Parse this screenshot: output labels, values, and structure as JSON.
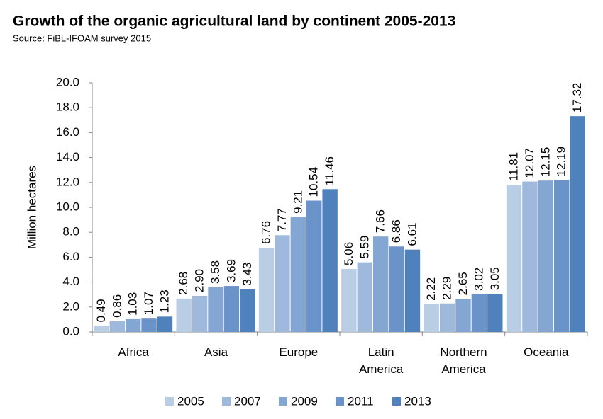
{
  "chart_data": {
    "type": "bar",
    "title": "Growth of the organic agricultural land by continent 2005-2013",
    "subtitle": "Source: FiBL-IFOAM survey 2015",
    "y_label": "Million hectares",
    "categories": [
      "Africa",
      "Asia",
      "Europe",
      "Latin America",
      "Northern America",
      "Oceania"
    ],
    "series": [
      {
        "name": "2005",
        "color": "#b9cde5",
        "values": [
          0.49,
          2.68,
          6.76,
          5.06,
          2.22,
          11.81
        ],
        "value_labels": [
          "0.49",
          "2.68",
          "6.76",
          "5.06",
          "2.22",
          "11.81"
        ]
      },
      {
        "name": "2007",
        "color": "#9fb9dc",
        "values": [
          0.86,
          2.9,
          7.77,
          5.59,
          2.29,
          12.07
        ],
        "value_labels": [
          "0.86",
          "2.90",
          "7.77",
          "5.59",
          "2.29",
          "12.07"
        ]
      },
      {
        "name": "2009",
        "color": "#84a6d3",
        "values": [
          1.03,
          3.58,
          9.21,
          7.66,
          2.65,
          12.15
        ],
        "value_labels": [
          "1.03",
          "3.58",
          "9.21",
          "7.66",
          "2.65",
          "12.15"
        ]
      },
      {
        "name": "2011",
        "color": "#6a93ca",
        "values": [
          1.07,
          3.69,
          10.54,
          6.86,
          3.02,
          12.19
        ],
        "value_labels": [
          "1.07",
          "3.69",
          "10.54",
          "6.86",
          "3.02",
          "12.19"
        ]
      },
      {
        "name": "2013",
        "color": "#4f81bd",
        "values": [
          1.23,
          3.43,
          11.46,
          6.61,
          3.05,
          17.32
        ],
        "value_labels": [
          "1.23",
          "3.43",
          "11.46",
          "6.61",
          "3.05",
          "17.32"
        ]
      }
    ],
    "ylim": [
      0,
      20
    ],
    "yticks": [
      {
        "value": 0,
        "label": "0.0"
      },
      {
        "value": 2,
        "label": "2.0"
      },
      {
        "value": 4,
        "label": "4.0"
      },
      {
        "value": 6,
        "label": "6.0"
      },
      {
        "value": 8,
        "label": "8.0"
      },
      {
        "value": 10,
        "label": "10.0"
      },
      {
        "value": 12,
        "label": "12.0"
      },
      {
        "value": 14,
        "label": "14.0"
      },
      {
        "value": 16,
        "label": "16.0"
      },
      {
        "value": 18,
        "label": "18.0"
      },
      {
        "value": 20,
        "label": "20.0"
      }
    ],
    "grid": false,
    "legend": "bottom"
  }
}
